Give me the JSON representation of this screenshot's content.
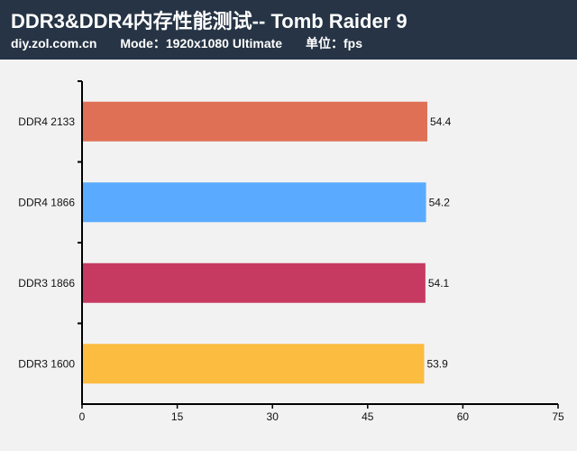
{
  "header": {
    "title": "DDR3&DDR4内存性能测试-- Tomb Raider 9",
    "site": "diy.zol.com.cn",
    "mode": "Mode：1920x1080 Ultimate",
    "unit": "单位：fps"
  },
  "chart_data": {
    "type": "bar",
    "orientation": "horizontal",
    "categories": [
      "DDR4 2133",
      "DDR4 1866",
      "DDR3 1866",
      "DDR3 1600"
    ],
    "values": [
      54.4,
      54.2,
      54.1,
      53.9
    ],
    "value_labels": [
      "54.4",
      "54.2",
      "54.1",
      "53.9"
    ],
    "colors": [
      "#e07055",
      "#5aabff",
      "#c63a62",
      "#fbbc40"
    ],
    "xlim": [
      0,
      75
    ],
    "xticks": [
      0,
      15,
      30,
      45,
      60,
      75
    ],
    "xtick_labels": [
      "0",
      "15",
      "30",
      "45",
      "60",
      "75"
    ],
    "grid": false,
    "legend": "none"
  }
}
